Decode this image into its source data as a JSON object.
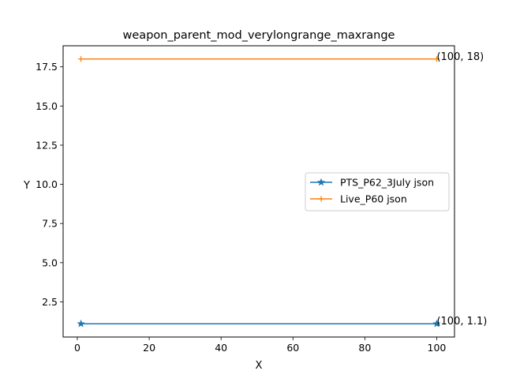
{
  "chart_data": {
    "type": "line",
    "title": "weapon_parent_mod_verylongrange_maxrange",
    "xlabel": "X",
    "ylabel": "Y",
    "xlim": [
      -3.95,
      104.95
    ],
    "ylim": [
      0.255,
      18.845
    ],
    "xticks": [
      0,
      20,
      40,
      60,
      80,
      100
    ],
    "yticks": [
      2.5,
      5.0,
      7.5,
      10.0,
      12.5,
      15.0,
      17.5
    ],
    "xtick_labels": [
      "0",
      "20",
      "40",
      "60",
      "80",
      "100"
    ],
    "ytick_labels": [
      "2.5",
      "5.0",
      "7.5",
      "10.0",
      "12.5",
      "15.0",
      "17.5"
    ],
    "grid": false,
    "legend_position": "center-right",
    "series": [
      {
        "name": "PTS_P62_3July json",
        "color": "#1f77b4",
        "marker": "star",
        "x": [
          1,
          100
        ],
        "y": [
          1.1,
          1.1
        ],
        "end_label": "(100, 1.1)"
      },
      {
        "name": "Live_P60 json",
        "color": "#ff7f0e",
        "marker": "plus",
        "x": [
          1,
          100
        ],
        "y": [
          18,
          18
        ],
        "end_label": "(100, 18)"
      }
    ]
  }
}
